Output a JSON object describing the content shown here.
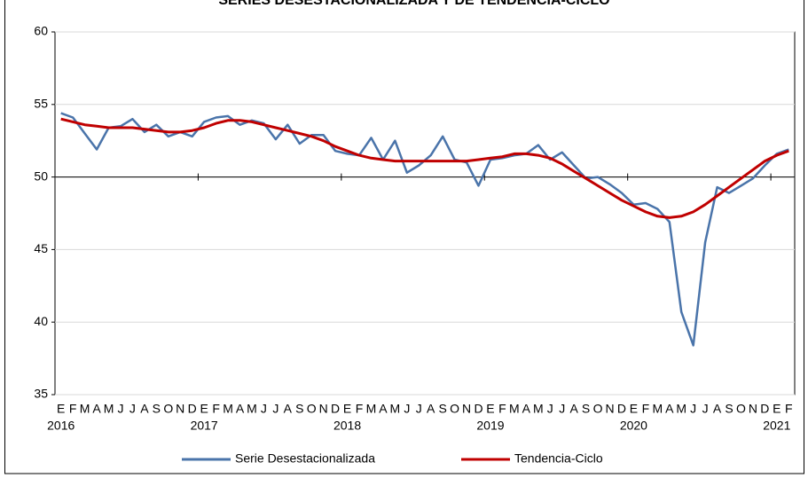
{
  "chart_data": {
    "type": "line",
    "title": "SERIES DESESTACIONALIZADA Y DE TENDENCIA-CICLO",
    "categories": [
      "E",
      "F",
      "M",
      "A",
      "M",
      "J",
      "J",
      "A",
      "S",
      "O",
      "N",
      "D",
      "E",
      "F",
      "M",
      "A",
      "M",
      "J",
      "J",
      "A",
      "S",
      "O",
      "N",
      "D",
      "E",
      "F",
      "M",
      "A",
      "M",
      "J",
      "J",
      "A",
      "S",
      "O",
      "N",
      "D",
      "E",
      "F",
      "M",
      "A",
      "M",
      "J",
      "J",
      "A",
      "S",
      "O",
      "N",
      "D",
      "E",
      "F",
      "M",
      "A",
      "M",
      "J",
      "J",
      "A",
      "S",
      "O",
      "N",
      "D",
      "E",
      "F"
    ],
    "year_labels": [
      "2016",
      null,
      null,
      null,
      null,
      null,
      null,
      null,
      null,
      null,
      null,
      null,
      "2017",
      null,
      null,
      null,
      null,
      null,
      null,
      null,
      null,
      null,
      null,
      null,
      "2018",
      null,
      null,
      null,
      null,
      null,
      null,
      null,
      null,
      null,
      null,
      null,
      "2019",
      null,
      null,
      null,
      null,
      null,
      null,
      null,
      null,
      null,
      null,
      null,
      "2020",
      null,
      null,
      null,
      null,
      null,
      null,
      null,
      null,
      null,
      null,
      null,
      "2021",
      null
    ],
    "series": [
      {
        "name": "Serie Desestacionalizada",
        "color": "#4a74aa",
        "values": [
          54.4,
          54.1,
          53.0,
          51.9,
          53.4,
          53.5,
          54.0,
          53.1,
          53.6,
          52.8,
          53.1,
          52.8,
          53.8,
          54.1,
          54.2,
          53.6,
          53.9,
          53.7,
          52.6,
          53.6,
          52.3,
          52.9,
          52.9,
          51.8,
          51.6,
          51.5,
          52.7,
          51.2,
          52.5,
          50.3,
          50.8,
          51.5,
          52.8,
          51.2,
          51.0,
          49.4,
          51.2,
          51.3,
          51.5,
          51.6,
          52.2,
          51.2,
          51.7,
          50.8,
          49.9,
          50.0,
          49.5,
          48.9,
          48.1,
          48.2,
          47.8,
          46.9,
          40.7,
          38.4,
          45.5,
          49.3,
          48.9,
          49.4,
          49.9,
          50.8,
          51.6,
          51.9
        ]
      },
      {
        "name": "Tendencia-Ciclo",
        "color": "#c00000",
        "values": [
          54.0,
          53.8,
          53.6,
          53.5,
          53.4,
          53.4,
          53.4,
          53.3,
          53.2,
          53.1,
          53.1,
          53.2,
          53.4,
          53.7,
          53.9,
          53.9,
          53.8,
          53.6,
          53.4,
          53.2,
          53.0,
          52.8,
          52.5,
          52.1,
          51.8,
          51.5,
          51.3,
          51.2,
          51.1,
          51.1,
          51.1,
          51.1,
          51.1,
          51.1,
          51.1,
          51.2,
          51.3,
          51.4,
          51.6,
          51.6,
          51.5,
          51.3,
          50.9,
          50.4,
          49.9,
          49.4,
          48.9,
          48.4,
          48.0,
          47.6,
          47.3,
          47.2,
          47.3,
          47.6,
          48.1,
          48.7,
          49.3,
          49.9,
          50.5,
          51.1,
          51.5,
          51.8
        ]
      }
    ],
    "ylim": [
      35,
      60
    ],
    "yticks": [
      35,
      40,
      45,
      50,
      55,
      60
    ],
    "x_axis_at": 50,
    "grid": true
  }
}
